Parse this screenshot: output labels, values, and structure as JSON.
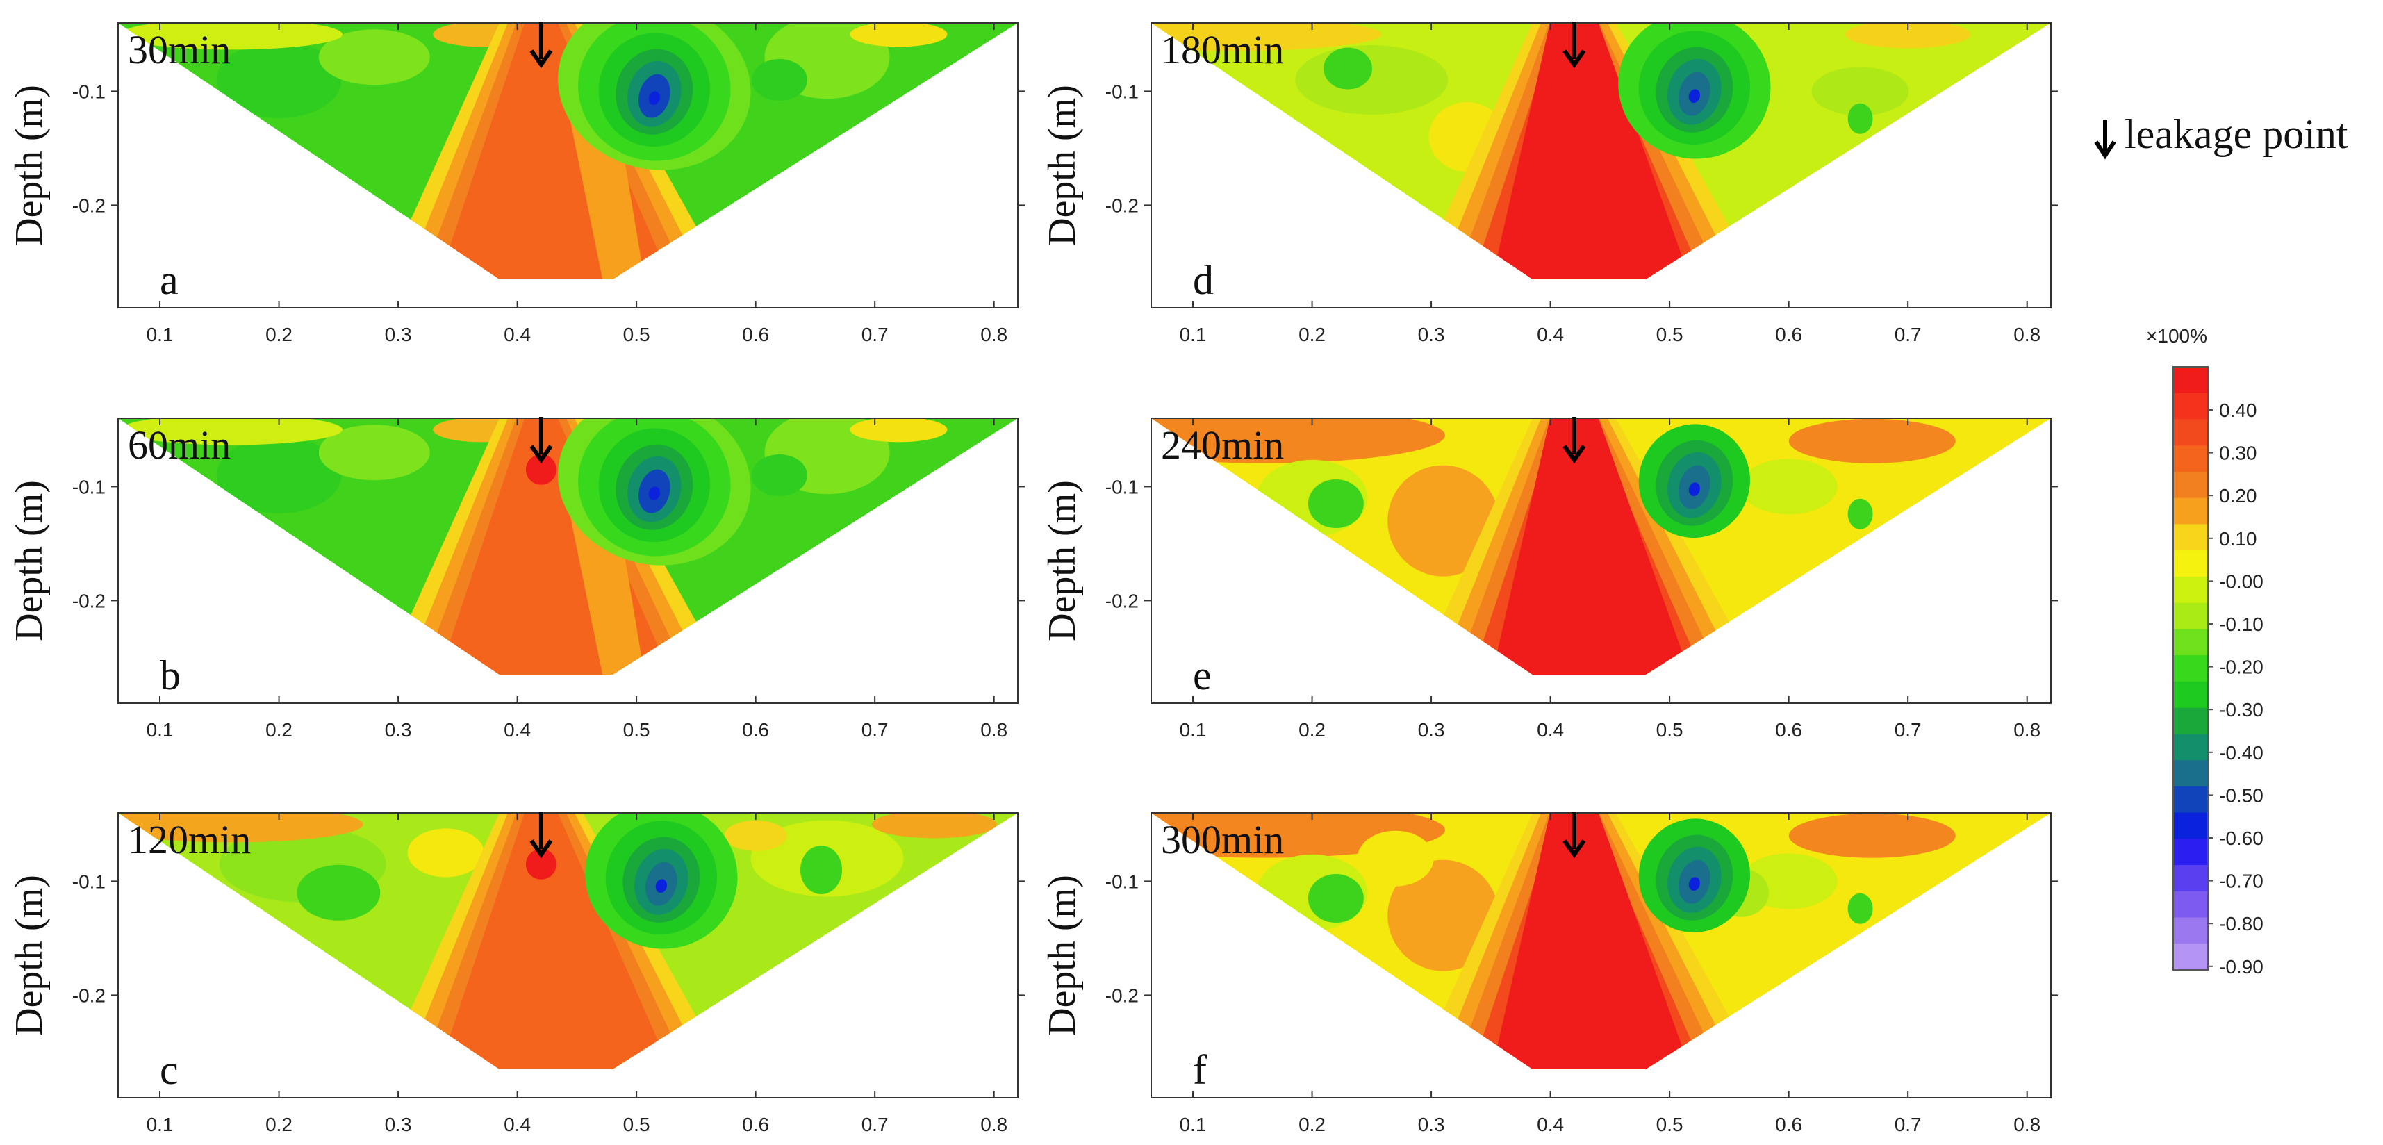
{
  "chart_data": {
    "type": "heatmap",
    "description_units": "relative change x100%",
    "x_ticks": [
      0.1,
      0.2,
      0.3,
      0.4,
      0.5,
      0.6,
      0.7,
      0.8
    ],
    "x_tick_labels": [
      "0.1",
      "0.2",
      "0.3",
      "0.4",
      "0.5",
      "0.6",
      "0.7",
      "0.8"
    ],
    "xlim": [
      0.065,
      0.82
    ],
    "y_ticks": [
      -0.1,
      -0.2
    ],
    "y_tick_labels": [
      "-0.1",
      "-0.2"
    ],
    "ylim": [
      -0.29,
      -0.04
    ],
    "ylabel": "Depth (m)",
    "leakage_x": 0.42,
    "panels": [
      {
        "letter": "a",
        "time": "30min",
        "warm_level": 1
      },
      {
        "letter": "b",
        "time": "60min",
        "warm_level": 2
      },
      {
        "letter": "c",
        "time": "120min",
        "warm_level": 3
      },
      {
        "letter": "d",
        "time": "180min",
        "warm_level": 4
      },
      {
        "letter": "e",
        "time": "240min",
        "warm_level": 5
      },
      {
        "letter": "f",
        "time": "300min",
        "warm_level": 6
      }
    ],
    "colorbar": {
      "title": "×100%",
      "tick_labels": [
        "0.40",
        "0.30",
        "0.20",
        "0.10",
        "-0.00",
        "-0.10",
        "-0.20",
        "-0.30",
        "-0.40",
        "-0.50",
        "-0.60",
        "-0.70",
        "-0.80",
        "-0.90"
      ],
      "colors": [
        "#f01c1c",
        "#f5321c",
        "#f24a1c",
        "#f5641c",
        "#f3801f",
        "#f6a01e",
        "#f7d51a",
        "#f4f20e",
        "#cdf10f",
        "#aaeb16",
        "#6fe01c",
        "#38d81c",
        "#1ec920",
        "#1aa83a",
        "#148f6b",
        "#1a6f8c",
        "#1144bb",
        "#0b22dd",
        "#2a1ff0",
        "#5a3ff0",
        "#7d5bf0",
        "#9a78f0",
        "#b494f2"
      ]
    },
    "legend": {
      "label": "leakage point",
      "symbol": "↓"
    }
  }
}
